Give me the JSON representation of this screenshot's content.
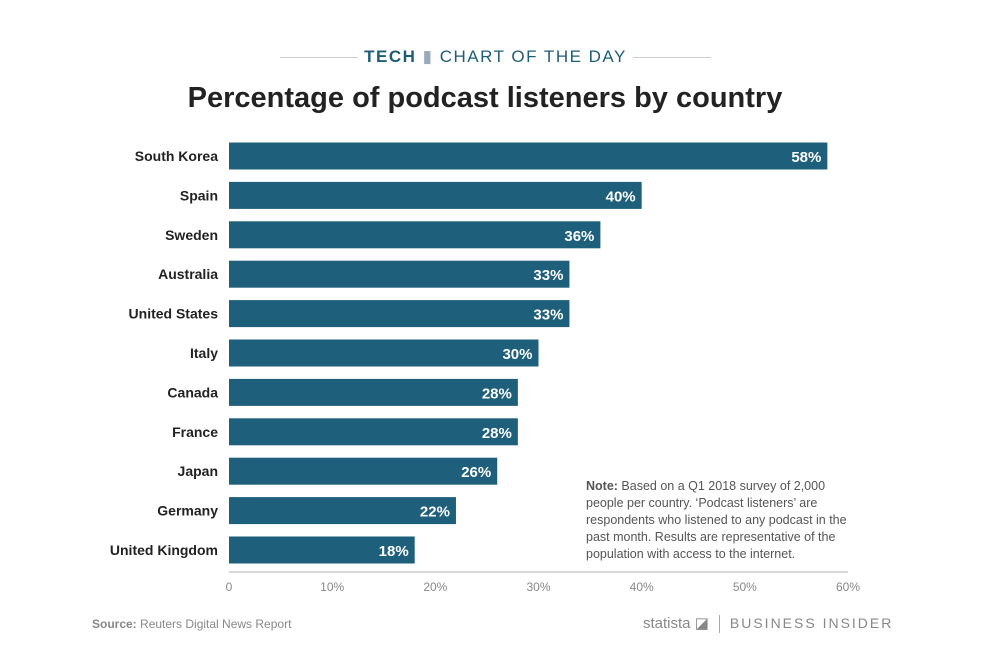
{
  "header": {
    "kicker_bold": "TECH",
    "kicker_rest": "CHART OF THE DAY",
    "title": "Percentage of podcast listeners by country"
  },
  "chart_data": {
    "type": "bar",
    "orientation": "horizontal",
    "title": "Percentage of podcast listeners by country",
    "categories": [
      "South Korea",
      "Spain",
      "Sweden",
      "Australia",
      "United States",
      "Italy",
      "Canada",
      "France",
      "Japan",
      "Germany",
      "United Kingdom"
    ],
    "values": [
      58,
      40,
      36,
      33,
      33,
      30,
      28,
      28,
      26,
      22,
      18
    ],
    "value_labels": [
      "58%",
      "40%",
      "36%",
      "33%",
      "33%",
      "30%",
      "28%",
      "28%",
      "26%",
      "22%",
      "18%"
    ],
    "xlim": [
      0,
      60
    ],
    "xticks": [
      "0",
      "10%",
      "20%",
      "30%",
      "40%",
      "50%",
      "60%"
    ],
    "grid": false,
    "bar_color": "#1e5f7b"
  },
  "note": {
    "label": "Note:",
    "text": " Based on a Q1 2018 survey of 2,000 people per country. ‘Podcast listeners’ are respondents who listened to any podcast in the past month. Results are representative of the population with access to the internet."
  },
  "footer": {
    "source_label": "Source:",
    "source_text": " Reuters Digital News Report",
    "statista": "statista",
    "business_insider": "BUSINESS INSIDER"
  }
}
